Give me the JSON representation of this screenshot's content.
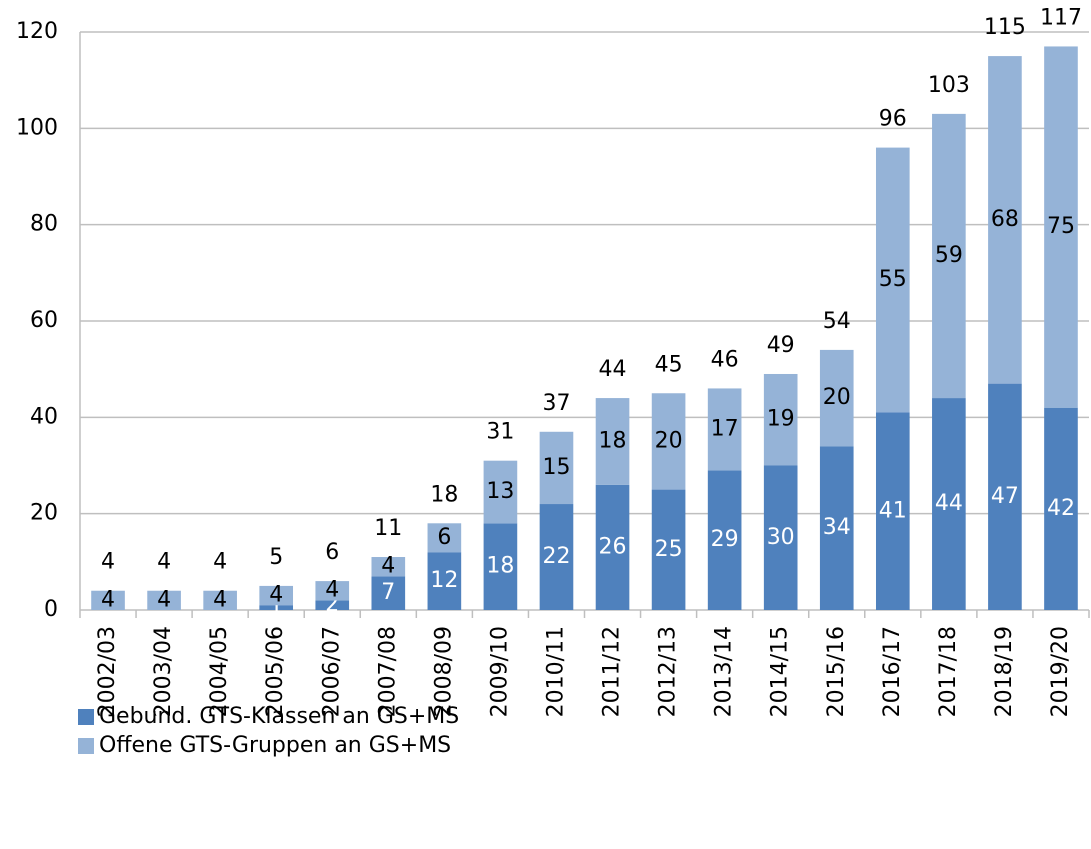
{
  "chart_data": {
    "type": "stacked_bar",
    "categories": [
      "2002/03",
      "2003/04",
      "2004/05",
      "2005/06",
      "2006/07",
      "2007/08",
      "2008/09",
      "2009/10",
      "2010/11",
      "2011/12",
      "2012/13",
      "2013/14",
      "2014/15",
      "2015/16",
      "2016/17",
      "2017/18",
      "2018/19",
      "2019/20"
    ],
    "series": [
      {
        "name": "Gebund. GTS-Klassen an GS+MS",
        "color": "#4f81bd",
        "label_color": "#ffffff",
        "values": [
          0,
          0,
          0,
          1,
          2,
          7,
          12,
          18,
          22,
          26,
          25,
          29,
          30,
          34,
          41,
          44,
          47,
          42
        ]
      },
      {
        "name": "Offene GTS-Gruppen an GS+MS",
        "color": "#95b3d7",
        "label_color": "#000000",
        "values": [
          4,
          4,
          4,
          4,
          4,
          4,
          6,
          13,
          15,
          18,
          20,
          17,
          19,
          20,
          55,
          59,
          68,
          75
        ]
      }
    ],
    "total_labels": [
      4,
      4,
      4,
      5,
      6,
      11,
      18,
      31,
      37,
      44,
      45,
      46,
      49,
      54,
      96,
      103,
      115,
      117
    ],
    "ylim": [
      0,
      120
    ],
    "yticks": [
      0,
      20,
      40,
      60,
      80,
      100,
      120
    ],
    "grid": true
  }
}
